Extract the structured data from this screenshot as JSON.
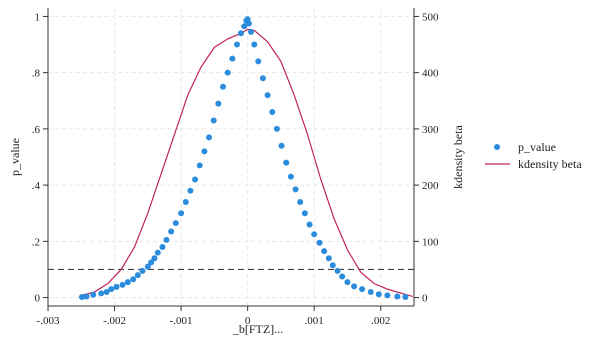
{
  "chart_data": {
    "type": "scatter",
    "xlabel": "_b[FTZ]...",
    "ylabel_left": "p_value",
    "ylabel_right": "kdensity beta",
    "xlim": [
      -0.003,
      0.0025
    ],
    "ylim_left": [
      -0.03,
      1.03
    ],
    "ylim_right": [
      -15,
      515
    ],
    "x_ticks": [
      {
        "v": -0.003,
        "label": "-.003"
      },
      {
        "v": -0.002,
        "label": "-.002"
      },
      {
        "v": -0.001,
        "label": "-.001"
      },
      {
        "v": 0,
        "label": "0"
      },
      {
        "v": 0.001,
        "label": ".001"
      },
      {
        "v": 0.002,
        "label": ".002"
      }
    ],
    "y_ticks_left": [
      {
        "v": 0,
        "label": "0"
      },
      {
        "v": 0.2,
        "label": ".2"
      },
      {
        "v": 0.4,
        "label": ".4"
      },
      {
        "v": 0.6,
        "label": ".6"
      },
      {
        "v": 0.8,
        "label": ".8"
      },
      {
        "v": 1,
        "label": "1"
      }
    ],
    "y_ticks_right": [
      {
        "v": 0,
        "label": "0"
      },
      {
        "v": 100,
        "label": "100"
      },
      {
        "v": 200,
        "label": "200"
      },
      {
        "v": 300,
        "label": "300"
      },
      {
        "v": 400,
        "label": "400"
      },
      {
        "v": 500,
        "label": "500"
      }
    ],
    "grid": true,
    "reference_line": {
      "axis": "y_left",
      "value": 0.1,
      "style": "dashed"
    },
    "legend_position": "right",
    "series": [
      {
        "name": "p_value",
        "kind": "scatter",
        "axis": "left",
        "color": "#2b8cde",
        "x": [
          -0.00249,
          -0.00242,
          -0.00232,
          -0.0022,
          -0.00212,
          -0.00205,
          -0.00197,
          -0.00188,
          -0.0018,
          -0.00172,
          -0.00165,
          -0.00158,
          -0.0015,
          -0.00145,
          -0.0014,
          -0.00135,
          -0.00128,
          -0.00122,
          -0.00115,
          -0.00108,
          -0.001,
          -0.00093,
          -0.00086,
          -0.00079,
          -0.00072,
          -0.00065,
          -0.00058,
          -0.00051,
          -0.00044,
          -0.00037,
          -0.0003,
          -0.00023,
          -0.00016,
          -0.0001,
          -5e-05,
          -2e-05,
          0.0,
          2e-05,
          5e-05,
          0.0001,
          0.00016,
          0.00023,
          0.0003,
          0.00037,
          0.00044,
          0.00051,
          0.00058,
          0.00065,
          0.00072,
          0.00079,
          0.00086,
          0.00093,
          0.001,
          0.00108,
          0.00115,
          0.00122,
          0.00128,
          0.00135,
          0.00142,
          0.0015,
          0.0016,
          0.00172,
          0.00185,
          0.00197,
          0.0021,
          0.00225,
          0.00237
        ],
        "y": [
          0.002,
          0.004,
          0.01,
          0.015,
          0.02,
          0.03,
          0.038,
          0.045,
          0.055,
          0.065,
          0.08,
          0.095,
          0.11,
          0.125,
          0.14,
          0.16,
          0.18,
          0.205,
          0.235,
          0.265,
          0.3,
          0.34,
          0.38,
          0.42,
          0.47,
          0.52,
          0.57,
          0.63,
          0.69,
          0.75,
          0.8,
          0.85,
          0.9,
          0.94,
          0.965,
          0.985,
          0.99,
          0.975,
          0.945,
          0.9,
          0.84,
          0.78,
          0.72,
          0.66,
          0.6,
          0.54,
          0.48,
          0.43,
          0.385,
          0.34,
          0.3,
          0.26,
          0.225,
          0.195,
          0.165,
          0.14,
          0.115,
          0.095,
          0.075,
          0.055,
          0.04,
          0.03,
          0.02,
          0.012,
          0.008,
          0.004,
          0.002
        ]
      },
      {
        "name": "kdensity beta",
        "kind": "line",
        "axis": "right",
        "color": "#c0255a",
        "x": [
          -0.00252,
          -0.0023,
          -0.0021,
          -0.0019,
          -0.0017,
          -0.0015,
          -0.0013,
          -0.0011,
          -0.0009,
          -0.0007,
          -0.0005,
          -0.0003,
          -0.0001,
          0.0,
          0.0001,
          0.0003,
          0.0005,
          0.0007,
          0.0009,
          0.0011,
          0.0013,
          0.0015,
          0.0017,
          0.0019,
          0.0021,
          0.0023,
          0.00248
        ],
        "y": [
          3,
          10,
          25,
          50,
          90,
          150,
          220,
          290,
          360,
          410,
          445,
          460,
          470,
          477,
          475,
          455,
          420,
          360,
          290,
          210,
          140,
          85,
          45,
          25,
          15,
          8,
          2
        ]
      }
    ]
  }
}
